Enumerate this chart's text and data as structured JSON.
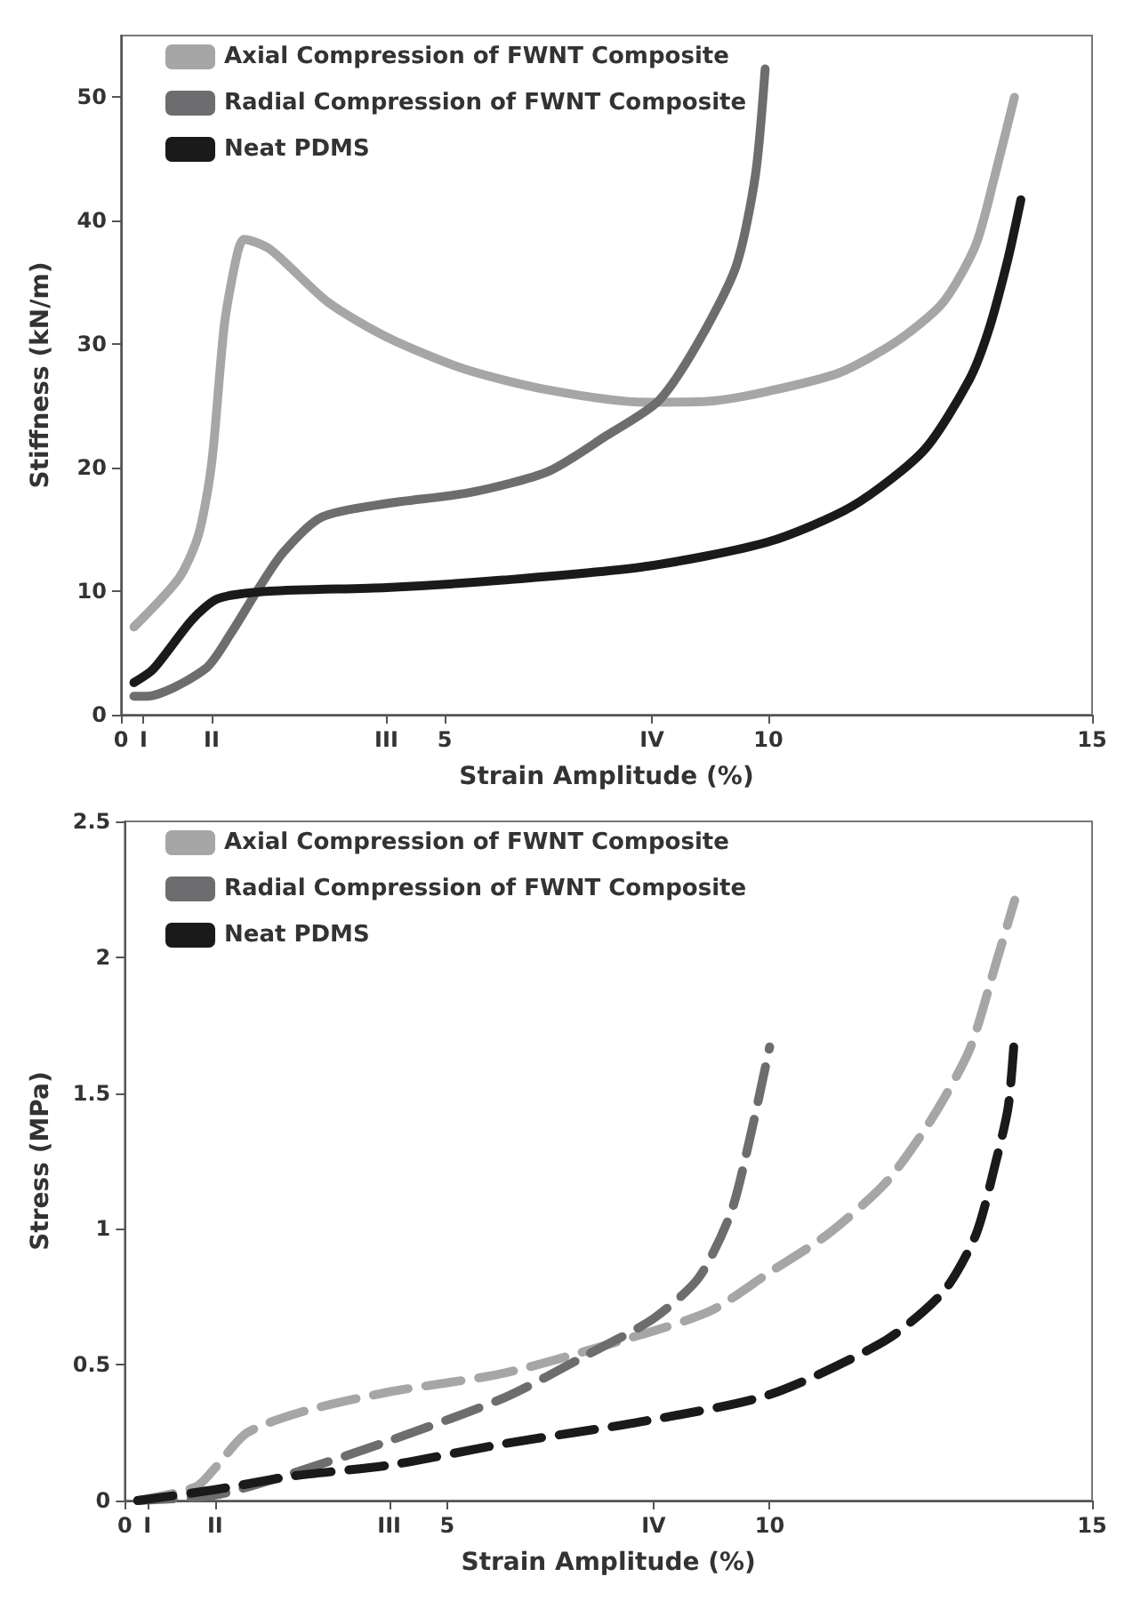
{
  "chart_data": [
    {
      "type": "line",
      "xlabel": "Strain Amplitude (%)",
      "ylabel": "Stiffness (kN/m)",
      "xlim": [
        0,
        15
      ],
      "ylim": [
        0,
        55
      ],
      "xticks": [
        0,
        {
          "value": 0.35,
          "label": "I"
        },
        {
          "value": 1.4,
          "label": "II"
        },
        {
          "value": 4.1,
          "label": "III"
        },
        5,
        {
          "value": 8.2,
          "label": "IV"
        },
        10,
        15
      ],
      "yticks": [
        0,
        10,
        20,
        30,
        40,
        50
      ],
      "grid": false,
      "legend": "top left",
      "marker": "none",
      "line_style": "solid",
      "series": [
        {
          "name": "Axial Compression of FWNT Composite",
          "color": "#a6a6a6",
          "x": [
            0.2,
            0.9,
            1.2,
            1.4,
            1.6,
            1.8,
            1.9,
            2.3,
            3.2,
            4.1,
            5.3,
            6.6,
            8.1,
            9.1,
            10,
            11.1,
            12,
            12.7,
            13.2,
            13.5,
            13.8
          ],
          "values": [
            7.1,
            11.1,
            14.6,
            20.3,
            31.7,
            37.4,
            38.5,
            37.7,
            33.4,
            30.6,
            28,
            26.3,
            25.3,
            25.4,
            26.2,
            27.7,
            30.3,
            33.4,
            38,
            43.7,
            50
          ]
        },
        {
          "name": "Radial Compression of FWNT Composite",
          "color": "#6d6d70",
          "x": [
            0.2,
            0.4,
            1.3,
            1.7,
            2.1,
            2.5,
            3.1,
            4.1,
            5.4,
            6.6,
            7.5,
            8.3,
            8.9,
            9.5,
            9.8,
            9.95
          ],
          "values": [
            1.5,
            1.5,
            3.7,
            6.6,
            10,
            13.1,
            16,
            17.1,
            18,
            19.7,
            22.6,
            25.4,
            30,
            36.3,
            43.7,
            52.3
          ]
        },
        {
          "name": "Neat PDMS",
          "color": "#1a1a1a",
          "x": [
            0.2,
            0.5,
            1.1,
            1.5,
            2.3,
            4.1,
            5.9,
            8.1,
            10,
            11.3,
            12.4,
            13.1,
            13.4,
            13.7,
            13.9
          ],
          "values": [
            2.6,
            3.7,
            7.7,
            9.4,
            10,
            10.3,
            10.9,
            12,
            14,
            16.9,
            21.4,
            27.1,
            31.1,
            36.9,
            41.7
          ]
        }
      ]
    },
    {
      "type": "line",
      "xlabel": "Strain Amplitude (%)",
      "ylabel": "Stress (MPa)",
      "xlim": [
        0,
        15
      ],
      "ylim": [
        0,
        2.5
      ],
      "xticks": [
        0,
        {
          "value": 0.35,
          "label": "I"
        },
        {
          "value": 1.4,
          "label": "II"
        },
        {
          "value": 4.1,
          "label": "III"
        },
        5,
        {
          "value": 8.2,
          "label": "IV"
        },
        10,
        15
      ],
      "yticks": [
        0,
        0.5,
        1,
        1.5,
        2,
        2.5
      ],
      "grid": false,
      "legend": "top left",
      "marker": "none",
      "line_style": "dashed",
      "series": [
        {
          "name": "Axial Compression of FWNT Composite",
          "color": "#a6a6a6",
          "x": [
            0.2,
            1.1,
            1.4,
            1.9,
            2.8,
            4.1,
            5.9,
            8,
            9.1,
            10,
            10.9,
            11.8,
            12.5,
            13.1,
            13.5,
            13.8
          ],
          "values": [
            0,
            0.05,
            0.12,
            0.25,
            0.33,
            0.4,
            0.47,
            0.61,
            0.7,
            0.84,
            0.98,
            1.17,
            1.4,
            1.66,
            1.97,
            2.21
          ]
        },
        {
          "name": "Radial Compression of FWNT Composite",
          "color": "#6d6d70",
          "x": [
            0.2,
            1.4,
            2.6,
            4.1,
            5.9,
            7.2,
            8.2,
            8.9,
            9.4,
            9.7,
            10
          ],
          "values": [
            0,
            0.02,
            0.1,
            0.22,
            0.38,
            0.54,
            0.67,
            0.82,
            1.06,
            1.34,
            1.67
          ]
        },
        {
          "name": "Neat PDMS",
          "color": "#1a1a1a",
          "x": [
            0.2,
            1.4,
            2.6,
            4.1,
            5.9,
            8,
            10,
            11.8,
            12.7,
            13.2,
            13.5,
            13.7,
            13.8
          ],
          "values": [
            0,
            0.04,
            0.09,
            0.13,
            0.21,
            0.29,
            0.39,
            0.59,
            0.77,
            0.98,
            1.24,
            1.45,
            1.72
          ]
        }
      ]
    }
  ]
}
